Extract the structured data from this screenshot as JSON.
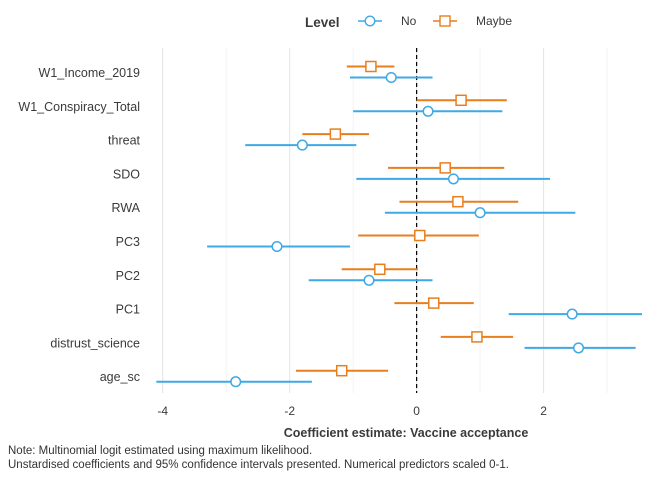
{
  "chart_data": {
    "type": "dot-and-whisker",
    "title": "",
    "xlabel": "Coefficient estimate: Vaccine acceptance",
    "ylabel": "",
    "xlim": [
      -4.2,
      3.55
    ],
    "x_ticks": [
      -4,
      -2,
      0,
      2
    ],
    "reference_line": 0,
    "grid": true,
    "legend": {
      "title": "Level",
      "position": "top-center",
      "entries": [
        {
          "name": "No",
          "color": "#3fa9e6",
          "marker": "circle"
        },
        {
          "name": "Maybe",
          "color": "#e87e1e",
          "marker": "square"
        }
      ]
    },
    "categories": [
      "W1_Income_2019",
      "W1_Conspiracy_Total",
      "threat",
      "SDO",
      "RWA",
      "PC3",
      "PC2",
      "PC1",
      "distrust_science",
      "age_sc"
    ],
    "series": [
      {
        "name": "No",
        "estimates": [
          -0.4,
          0.18,
          -1.8,
          0.58,
          1.0,
          -2.2,
          -0.75,
          2.45,
          2.55,
          -2.85
        ],
        "ci_low": [
          -1.05,
          -1.0,
          -2.7,
          -0.95,
          -0.5,
          -3.3,
          -1.7,
          1.45,
          1.7,
          -4.1
        ],
        "ci_high": [
          0.25,
          1.35,
          -0.95,
          2.1,
          2.5,
          -1.05,
          0.25,
          3.55,
          3.45,
          -1.65
        ]
      },
      {
        "name": "Maybe",
        "estimates": [
          -0.72,
          0.7,
          -1.28,
          0.45,
          0.65,
          0.05,
          -0.58,
          0.27,
          0.95,
          -1.18
        ],
        "ci_low": [
          -1.1,
          0.0,
          -1.8,
          -0.45,
          -0.27,
          -0.92,
          -1.18,
          -0.35,
          0.38,
          -1.9
        ],
        "ci_high": [
          -0.35,
          1.42,
          -0.75,
          1.38,
          1.6,
          0.98,
          0.02,
          0.9,
          1.52,
          -0.45
        ]
      }
    ]
  },
  "notes": {
    "line1": "Note: Multinomial logit estimated using maximum likelihood.",
    "line2": "Unstardised coefficients and 95% confidence intervals presented. Numerical predictors scaled 0-1."
  }
}
